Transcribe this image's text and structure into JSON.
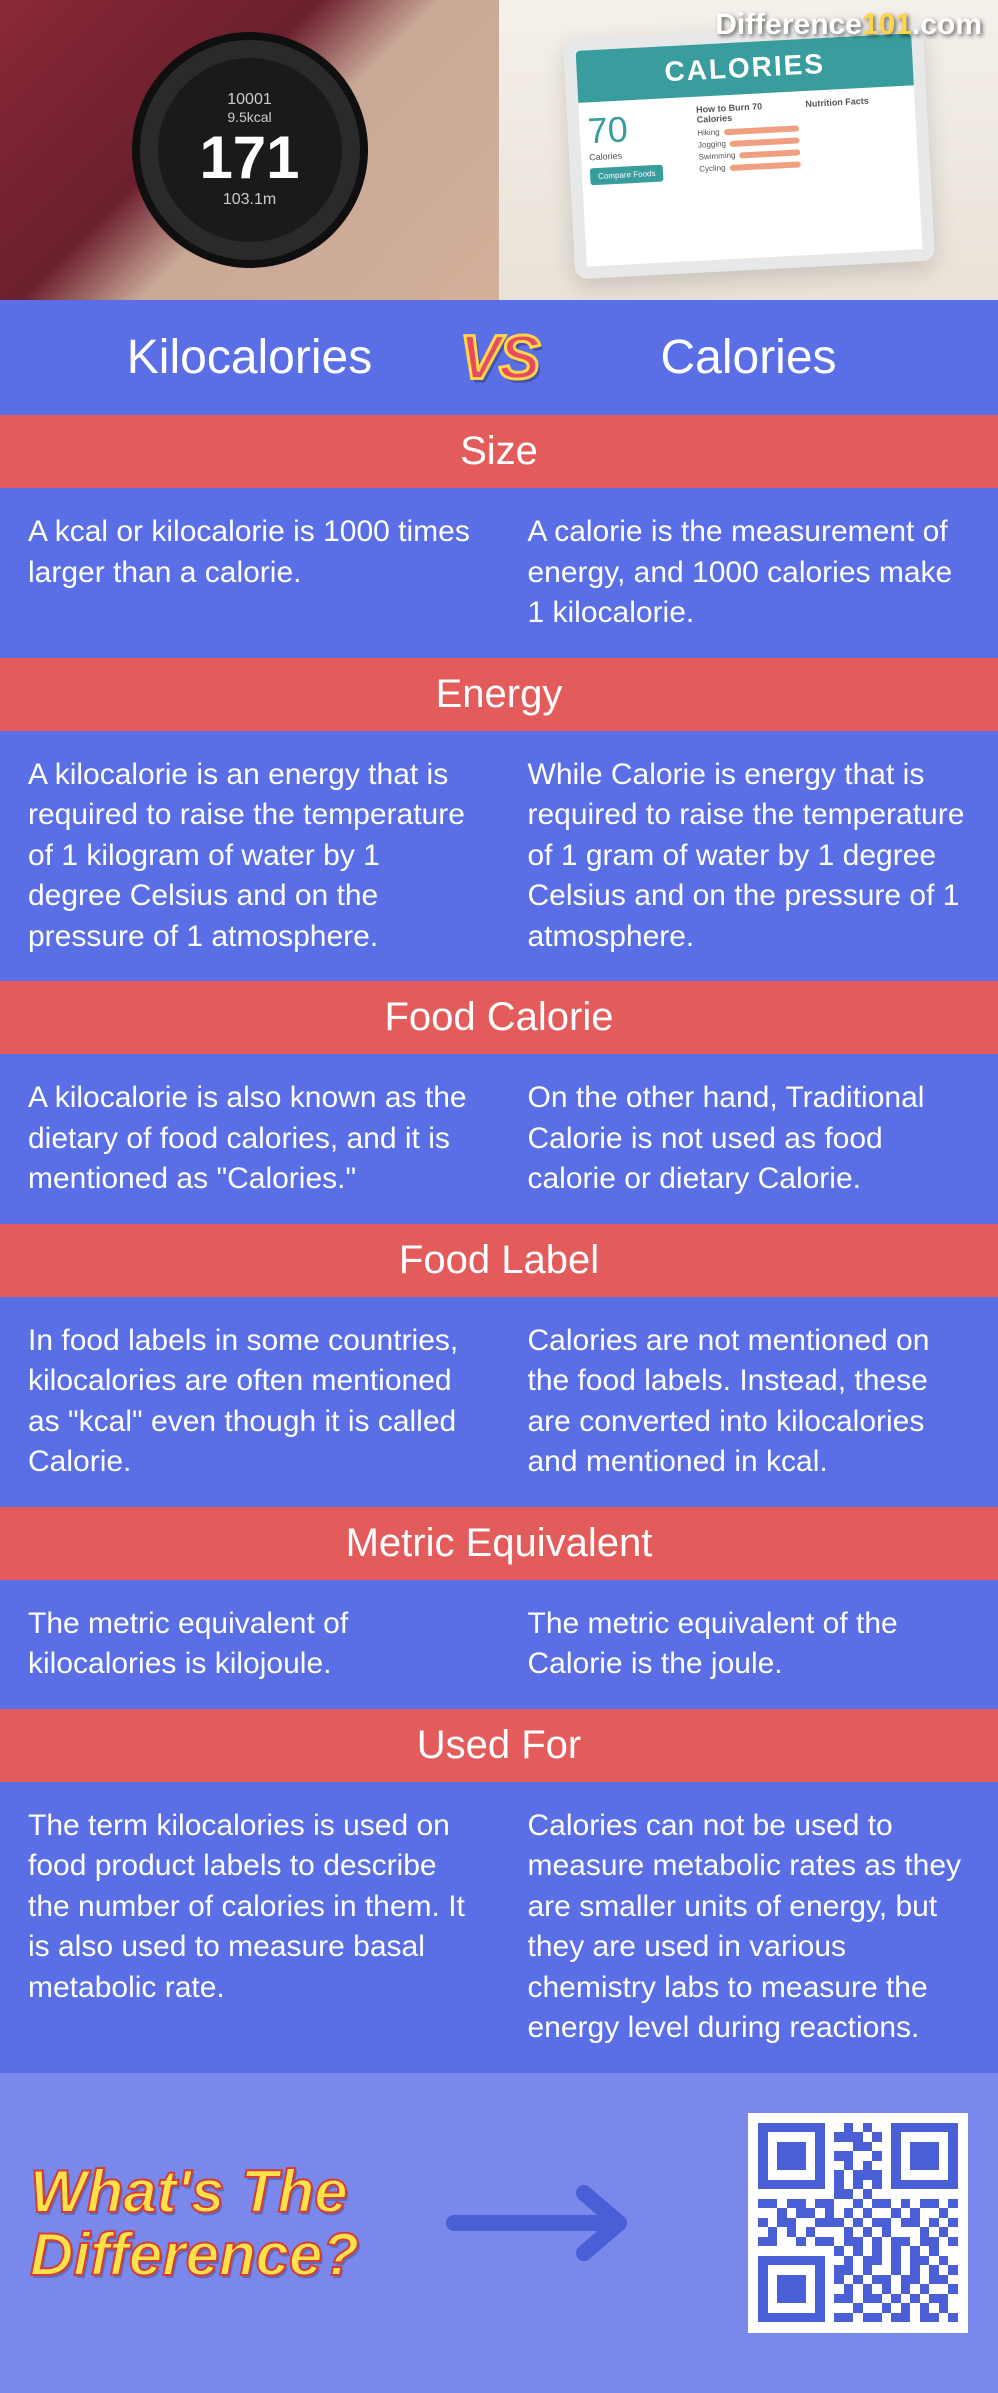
{
  "brand": {
    "prefix": "Difference",
    "num": "101",
    "suffix": ".com"
  },
  "hero": {
    "watch": {
      "steps": "10001",
      "kcal": "9.5kcal",
      "main": "171",
      "dist": "103.1m"
    },
    "tablet": {
      "title": "CALORIES",
      "big": "70",
      "big_label": "Calories",
      "col2_head": "How to Burn 70 Calories",
      "rows": [
        "Hiking",
        "Jogging",
        "Swimming",
        "Cycling"
      ],
      "col3_head": "Nutrition Facts",
      "btn": "Compare Foods"
    }
  },
  "compare": {
    "left": "Kilocalories",
    "right": "Calories",
    "vs": "VS"
  },
  "sections": [
    {
      "title": "Size",
      "left": "A kcal or kilocalorie is 1000 times larger than a calorie.",
      "right": "A calorie is the measurement of energy, and 1000 calories make 1 kilocalorie."
    },
    {
      "title": "Energy",
      "left": "A kilocalorie is an energy that is required to raise the temperature of 1 kilogram of water by 1 degree Celsius and on the pressure of 1 atmosphere.",
      "right": "While Calorie is energy that is required to raise the temperature of 1 gram of water by 1 degree Celsius and on the pressure of 1 atmosphere."
    },
    {
      "title": "Food Calorie",
      "left": "A kilocalorie is also known as the dietary of food calories, and it is mentioned as \"Calories.\"",
      "right": "On the other hand, Traditional Calorie is not used as food calorie or dietary Calorie."
    },
    {
      "title": "Food Label",
      "left": "In food labels in some countries, kilocalories are often mentioned as \"kcal\" even though it is called Calorie.",
      "right": "Calories are not mentioned on the food labels. Instead, these are converted into kilocalories and mentioned in kcal."
    },
    {
      "title": "Metric Equivalent",
      "left": "The metric equivalent of kilocalories is kilojoule.",
      "right": "The metric equivalent of the Calorie is the joule."
    },
    {
      "title": "Used For",
      "left": "The term kilocalories is used on food product labels to describe the number of calories in them. It is also used to measure basal metabolic rate.",
      "right": "Calories can not be used to measure metabolic rates as they are smaller units of energy, but they are used in various chemistry labs to measure the energy level during reactions."
    }
  ],
  "footer": {
    "line1": "What's The",
    "line2": "Difference?"
  },
  "colors": {
    "blue": "#5a6fe6",
    "coral": "#e35b5b",
    "yellow": "#ffe24a",
    "footer_bg": "#7988ea",
    "vs_fill": "#e84a5f",
    "qr_module": "#4a5fd6"
  }
}
